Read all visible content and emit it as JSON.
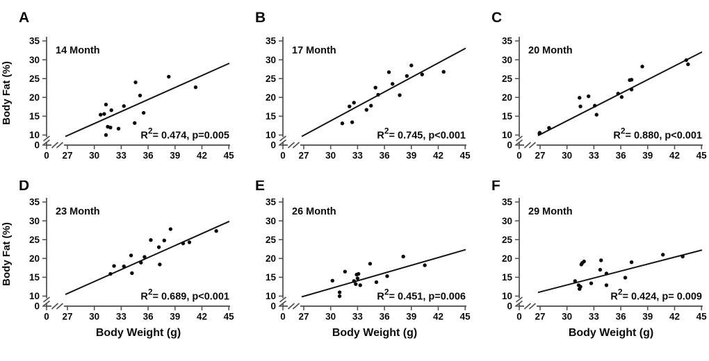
{
  "figure": {
    "x_axis": {
      "label": "Body Weight (g)",
      "ticks": [
        0,
        27,
        30,
        33,
        36,
        39,
        42,
        45
      ],
      "axis_break_between": [
        0,
        27
      ]
    },
    "y_axis": {
      "label": "Body Fat (%)",
      "ticks": [
        0,
        10,
        15,
        20,
        25,
        30,
        35
      ],
      "axis_break_between": [
        0,
        10
      ]
    },
    "marker_color": "#0a0a0a",
    "line_color": "#141414",
    "axis_color": "#4a4a4a"
  },
  "chart_data": [
    {
      "type": "scatter",
      "panel_letter": "A",
      "title": "14 Month",
      "annotation": {
        "base": "R",
        "sup": "2",
        "rest": "= 0.474, p=0.005"
      },
      "xlabel": "Body Weight (g)",
      "ylabel": "Body Fat (%)",
      "xlim": [
        0,
        45
      ],
      "ylim": [
        0,
        35
      ],
      "points": [
        [
          30.7,
          15.4
        ],
        [
          31.1,
          15.6
        ],
        [
          31.3,
          10.0
        ],
        [
          31.5,
          12.2
        ],
        [
          31.3,
          18.1
        ],
        [
          31.8,
          12.0
        ],
        [
          31.9,
          16.6
        ],
        [
          32.7,
          11.7
        ],
        [
          33.3,
          17.7
        ],
        [
          34.5,
          13.2
        ],
        [
          34.6,
          24.0
        ],
        [
          35.1,
          20.5
        ],
        [
          35.5,
          15.9
        ],
        [
          38.3,
          25.5
        ],
        [
          41.3,
          22.7
        ]
      ],
      "trendline": {
        "x1": 25.0,
        "y1": 8.8,
        "x2": 45.0,
        "y2": 29.0
      },
      "show_ylabel": true,
      "show_xlabel": false
    },
    {
      "type": "scatter",
      "panel_letter": "B",
      "title": "17 Month",
      "annotation": {
        "base": "R",
        "sup": "2",
        "rest": "= 0.745, p<0.001"
      },
      "xlabel": "Body Weight (g)",
      "ylabel": "Body Fat (%)",
      "xlim": [
        0,
        45
      ],
      "ylim": [
        0,
        35
      ],
      "points": [
        [
          31.3,
          13.1
        ],
        [
          32.1,
          17.6
        ],
        [
          32.4,
          13.4
        ],
        [
          32.6,
          18.6
        ],
        [
          34.0,
          16.7
        ],
        [
          34.5,
          17.8
        ],
        [
          35.0,
          22.6
        ],
        [
          35.3,
          20.7
        ],
        [
          36.5,
          26.7
        ],
        [
          36.9,
          23.6
        ],
        [
          37.7,
          20.6
        ],
        [
          38.5,
          25.7
        ],
        [
          39.0,
          28.5
        ],
        [
          40.2,
          26.1
        ],
        [
          42.6,
          26.8
        ]
      ],
      "trendline": {
        "x1": 25.0,
        "y1": 8.9,
        "x2": 45.0,
        "y2": 33.0
      },
      "show_ylabel": false,
      "show_xlabel": false
    },
    {
      "type": "scatter",
      "panel_letter": "C",
      "title": "20 Month",
      "annotation": {
        "base": "R",
        "sup": "2",
        "rest": "= 0.880, p<0.001"
      },
      "xlabel": "Body Weight (g)",
      "ylabel": "Body Fat (%)",
      "xlim": [
        0,
        45
      ],
      "ylim": [
        0,
        35
      ],
      "points": [
        [
          26.2,
          10.4
        ],
        [
          26.5,
          10.6
        ],
        [
          28.0,
          11.9
        ],
        [
          31.4,
          19.9
        ],
        [
          31.5,
          17.6
        ],
        [
          32.4,
          20.3
        ],
        [
          33.1,
          17.8
        ],
        [
          33.3,
          15.4
        ],
        [
          35.7,
          21.0
        ],
        [
          36.1,
          20.1
        ],
        [
          37.0,
          24.6
        ],
        [
          37.2,
          24.7
        ],
        [
          37.2,
          22.1
        ],
        [
          38.4,
          28.2
        ],
        [
          43.3,
          29.9
        ],
        [
          43.5,
          28.8
        ]
      ],
      "trendline": {
        "x1": 25.0,
        "y1": 9.7,
        "x2": 45.0,
        "y2": 32.0
      },
      "show_ylabel": false,
      "show_xlabel": false
    },
    {
      "type": "scatter",
      "panel_letter": "D",
      "title": "23 Month",
      "annotation": {
        "base": "R",
        "sup": "2",
        "rest": "= 0.689, p<0.001"
      },
      "xlabel": "Body Weight (g)",
      "ylabel": "Body Fat (%)",
      "xlim": [
        0,
        45
      ],
      "ylim": [
        0,
        35
      ],
      "points": [
        [
          31.8,
          15.9
        ],
        [
          32.2,
          18.0
        ],
        [
          33.3,
          17.9
        ],
        [
          34.1,
          20.8
        ],
        [
          34.2,
          16.1
        ],
        [
          35.2,
          18.9
        ],
        [
          35.6,
          20.4
        ],
        [
          36.3,
          24.9
        ],
        [
          37.2,
          23.0
        ],
        [
          37.3,
          18.4
        ],
        [
          37.8,
          24.8
        ],
        [
          38.5,
          27.8
        ],
        [
          39.9,
          24.0
        ],
        [
          40.6,
          24.3
        ],
        [
          43.6,
          27.3
        ]
      ],
      "trendline": {
        "x1": 25.0,
        "y1": 10.5,
        "x2": 45.0,
        "y2": 29.8
      },
      "show_ylabel": true,
      "show_xlabel": true
    },
    {
      "type": "scatter",
      "panel_letter": "E",
      "title": "26 Month",
      "annotation": {
        "base": "R",
        "sup": "2",
        "rest": "= 0.451, p=0.006"
      },
      "xlabel": "Body Weight (g)",
      "ylabel": "Body Fat (%)",
      "xlim": [
        0,
        45
      ],
      "ylim": [
        0,
        35
      ],
      "points": [
        [
          30.2,
          14.1
        ],
        [
          31.0,
          11.0
        ],
        [
          31.0,
          9.9
        ],
        [
          31.6,
          16.5
        ],
        [
          32.6,
          14.0
        ],
        [
          32.9,
          15.7
        ],
        [
          33.1,
          15.9
        ],
        [
          33.0,
          14.7
        ],
        [
          32.8,
          13.2
        ],
        [
          33.3,
          12.9
        ],
        [
          34.4,
          18.6
        ],
        [
          35.1,
          13.7
        ],
        [
          36.3,
          15.3
        ],
        [
          38.1,
          20.5
        ],
        [
          40.5,
          18.2
        ]
      ],
      "trendline": {
        "x1": 25.0,
        "y1": 9.4,
        "x2": 45.0,
        "y2": 22.3
      },
      "show_ylabel": false,
      "show_xlabel": true
    },
    {
      "type": "scatter",
      "panel_letter": "F",
      "title": "29 Month",
      "annotation": {
        "base": "R",
        "sup": "2",
        "rest": "= 0.424, p= 0.009"
      },
      "xlabel": "Body Weight (g)",
      "ylabel": "Body Fat (%)",
      "xlim": [
        0,
        45
      ],
      "ylim": [
        0,
        35
      ],
      "points": [
        [
          30.9,
          14.0
        ],
        [
          31.3,
          12.9
        ],
        [
          31.5,
          12.5
        ],
        [
          31.4,
          11.9
        ],
        [
          31.6,
          18.4
        ],
        [
          31.7,
          18.8
        ],
        [
          31.9,
          19.2
        ],
        [
          32.7,
          13.4
        ],
        [
          33.7,
          17.0
        ],
        [
          33.8,
          19.5
        ],
        [
          34.4,
          16.0
        ],
        [
          34.4,
          12.9
        ],
        [
          36.5,
          14.9
        ],
        [
          37.2,
          19.0
        ],
        [
          40.7,
          21.0
        ],
        [
          42.9,
          20.5
        ]
      ],
      "trendline": {
        "x1": 25.0,
        "y1": 11.0,
        "x2": 45.0,
        "y2": 22.2
      },
      "show_ylabel": false,
      "show_xlabel": true
    }
  ]
}
